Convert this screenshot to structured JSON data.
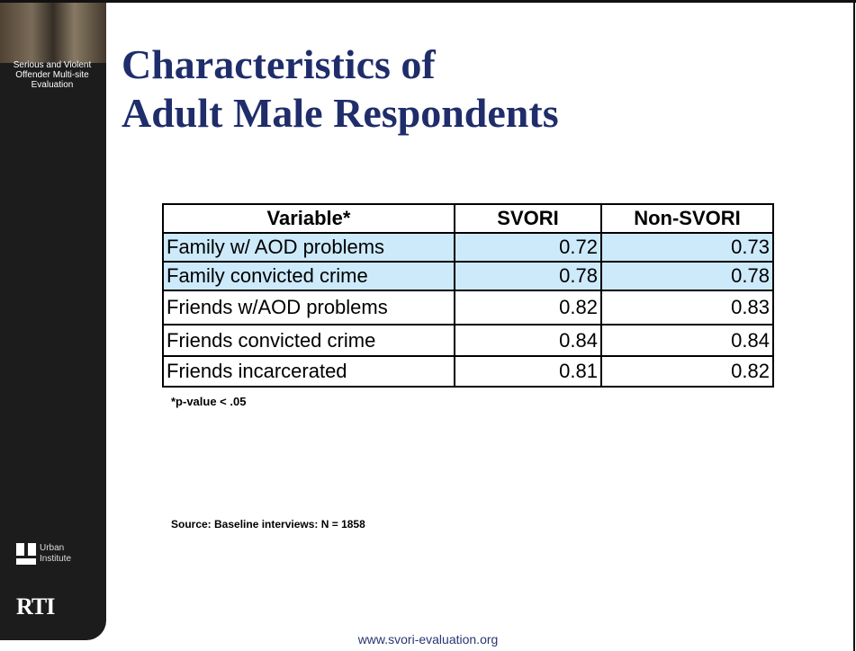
{
  "sidebar": {
    "project": "Serious and Violent Offender Multi-site Evaluation",
    "logos": [
      "Urban Institute",
      "RTI"
    ]
  },
  "header": {
    "title_lines": [
      "Characteristics of",
      "Adult Male Respondents"
    ]
  },
  "table": {
    "columns": [
      "Variable*",
      "SVORI",
      "Non-SVORI"
    ],
    "rows": [
      [
        "Family w/ AOD problems",
        "0.72",
        "0.73"
      ],
      [
        "Family convicted crime",
        "0.78",
        "0.78"
      ],
      [
        "Friends w/AOD problems",
        "0.82",
        "0.83"
      ],
      [
        "Friends convicted crime",
        "0.84",
        "0.84"
      ],
      [
        "Friends incarcerated",
        "0.81",
        "0.82"
      ]
    ]
  },
  "footnote": "*p-value < .05",
  "source": "Source: Baseline interviews: N = 1858",
  "footer": {
    "url": "www.svori-evaluation.org"
  }
}
